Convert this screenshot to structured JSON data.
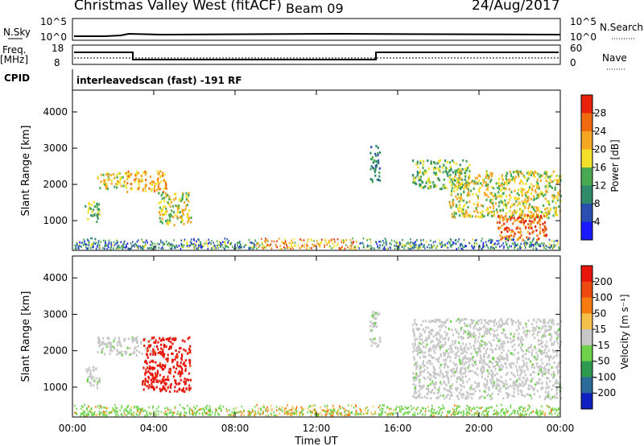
{
  "header": {
    "title": "Christmas Valley West (fitACF)",
    "beam": "Beam 09",
    "date": "24/Aug/2017"
  },
  "strips": {
    "nsky_label": "N.Sky",
    "nsearch_label": "N.Search",
    "nsky_ticks": [
      "10^5",
      "10^0"
    ],
    "nsearch_ticks": [
      "10^5",
      "10^0"
    ],
    "freq_label": "Freq.",
    "freq_unit": "[MHz]",
    "freq_ticks": [
      "18",
      "8"
    ],
    "nave_label": "Nave",
    "nave_ticks": [
      "60",
      "0"
    ],
    "cpid_label": "CPID",
    "cpid_value": "interleavedscan (fast) -191 RF"
  },
  "chart_data": [
    {
      "type": "heatmap",
      "name": "power",
      "ylabel": "Slant Range [km]",
      "yticks": [
        "1000",
        "2000",
        "3000",
        "4000"
      ],
      "yrange": [
        180,
        4600
      ],
      "xrange_hours": [
        0,
        24
      ],
      "colorbar": {
        "label": "Power [dB]",
        "ticks": [
          "4",
          "8",
          "12",
          "16",
          "20",
          "24",
          "28"
        ],
        "colors": [
          "#1a1aff",
          "#2a4fb0",
          "#2f8a6a",
          "#4aaa52",
          "#f2e02a",
          "#f5a623",
          "#f06a10",
          "#e8230c"
        ]
      },
      "echo_regions": [
        {
          "hours": [
            0.6,
            1.3
          ],
          "range_km": [
            1000,
            1600
          ],
          "level": 3
        },
        {
          "hours": [
            1.2,
            2.6
          ],
          "range_km": [
            1900,
            2350
          ],
          "level": 4
        },
        {
          "hours": [
            2.6,
            4.6
          ],
          "range_km": [
            1800,
            2400
          ],
          "level": 5
        },
        {
          "hours": [
            4.2,
            5.8
          ],
          "range_km": [
            900,
            1800
          ],
          "level": 4
        },
        {
          "hours": [
            14.6,
            15.1
          ],
          "range_km": [
            2100,
            3100
          ],
          "level": 2
        },
        {
          "hours": [
            16.7,
            19.5
          ],
          "range_km": [
            1900,
            2700
          ],
          "level": 3
        },
        {
          "hours": [
            18.5,
            24.0
          ],
          "range_km": [
            1100,
            2400
          ],
          "level": 4
        },
        {
          "hours": [
            20.8,
            23.3
          ],
          "range_km": [
            500,
            1200
          ],
          "level": 6
        }
      ],
      "ground_scatter_band_km": [
        200,
        550
      ]
    },
    {
      "type": "heatmap",
      "name": "velocity",
      "ylabel": "Slant Range [km]",
      "yticks": [
        "1000",
        "2000",
        "3000",
        "4000"
      ],
      "yrange": [
        180,
        4600
      ],
      "xlabel": "Time UT",
      "xticks": [
        "00:00",
        "04:00",
        "08:00",
        "12:00",
        "16:00",
        "20:00",
        "00:00"
      ],
      "colorbar": {
        "label": "Velocity [m s⁻¹]",
        "ticks": [
          "200",
          "100",
          "50",
          "15",
          "-15",
          "-50",
          "-100",
          "-200"
        ],
        "colors": [
          "#1020c0",
          "#2a6b9a",
          "#2e9a50",
          "#6ed24a",
          "#c8c8c8",
          "#f5c04a",
          "#f57a10",
          "#ee4a10",
          "#e8150c"
        ]
      },
      "echo_regions": [
        {
          "hours": [
            0.6,
            1.3
          ],
          "range_km": [
            1000,
            1600
          ],
          "color_index": 4
        },
        {
          "hours": [
            1.2,
            4.0
          ],
          "range_km": [
            1900,
            2400
          ],
          "color_index": 4
        },
        {
          "hours": [
            3.4,
            5.8
          ],
          "range_km": [
            900,
            2400
          ],
          "color_index": 8
        },
        {
          "hours": [
            14.6,
            15.1
          ],
          "range_km": [
            2100,
            3100
          ],
          "color_index": 4
        },
        {
          "hours": [
            16.7,
            24.0
          ],
          "range_km": [
            700,
            2900
          ],
          "color_index": 4
        }
      ],
      "ground_scatter_band_km": [
        200,
        550
      ]
    }
  ]
}
